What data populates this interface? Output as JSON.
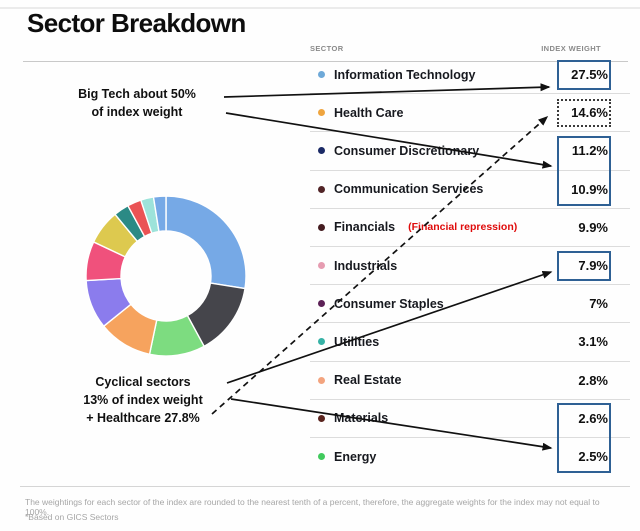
{
  "page": {
    "title": "Sector Breakdown"
  },
  "table": {
    "headers": {
      "sector": "SECTOR",
      "weight": "INDEX WEIGHT"
    },
    "rows": [
      {
        "name": "Information Technology",
        "weight": "27.5%",
        "dot_color": "#6ea9d8",
        "box": "solid"
      },
      {
        "name": "Health Care",
        "weight": "14.6%",
        "dot_color": "#efa53f",
        "box": "dotted"
      },
      {
        "name": "Consumer Discretionary",
        "weight": "11.2%",
        "dot_color": "#1b2a66",
        "box": "tall-top"
      },
      {
        "name": "Communication Services",
        "weight": "10.9%",
        "dot_color": "#512427",
        "box": "tall-bottom"
      },
      {
        "name": "Financials",
        "weight": "9.9%",
        "dot_color": "#441c20",
        "box": "none",
        "note": "(Financial repression)"
      },
      {
        "name": "Industrials",
        "weight": "7.9%",
        "dot_color": "#e69cb1",
        "box": "solid"
      },
      {
        "name": "Consumer Staples",
        "weight": "7%",
        "dot_color": "#5c2156",
        "box": "none"
      },
      {
        "name": "Utilities",
        "weight": "3.1%",
        "dot_color": "#36b2a6",
        "box": "none"
      },
      {
        "name": "Real Estate",
        "weight": "2.8%",
        "dot_color": "#f3a47f",
        "box": "none"
      },
      {
        "name": "Materials",
        "weight": "2.6%",
        "dot_color": "#5a241e",
        "box": "tall-top"
      },
      {
        "name": "Energy",
        "weight": "2.5%",
        "dot_color": "#41ca5d",
        "box": "tall-bottom"
      }
    ]
  },
  "annotations": {
    "big_tech": {
      "line1": "Big Tech about 50%",
      "line2": "of index weight"
    },
    "cyclical": {
      "line1": "Cyclical sectors",
      "line2": "13% of index weight",
      "line3": "+ Healthcare 27.8%"
    },
    "financials_note": "(Financial repression)"
  },
  "footnotes": {
    "line1": "The weightings for each sector of the index are rounded to the nearest tenth of a percent, therefore, the aggregate weights for the index may not equal to 100%.",
    "line2": "*Based on GICS Sectors"
  },
  "colors": {
    "highlight_box": "#2e6094",
    "note_red": "#df0b0b",
    "arrow": "#111111"
  },
  "chart_data": {
    "type": "pie",
    "donut": true,
    "title": "Sector Breakdown",
    "legend_position": "none",
    "start_at_top_clockwise": true,
    "labels": [
      "Information Technology",
      "Health Care",
      "Consumer Discretionary",
      "Communication Services",
      "Financials",
      "Industrials",
      "Consumer Staples",
      "Utilities",
      "Real Estate",
      "Materials",
      "Energy"
    ],
    "values": [
      27.5,
      14.6,
      11.2,
      10.9,
      9.9,
      7.9,
      7.0,
      3.1,
      2.8,
      2.6,
      2.5
    ],
    "colors": [
      "#76a9e6",
      "#45454b",
      "#7ddc80",
      "#f6a35e",
      "#8b7ced",
      "#f0517c",
      "#ddc94f",
      "#2b8a85",
      "#ea5355",
      "#9de3da",
      "#76a9e6"
    ]
  }
}
